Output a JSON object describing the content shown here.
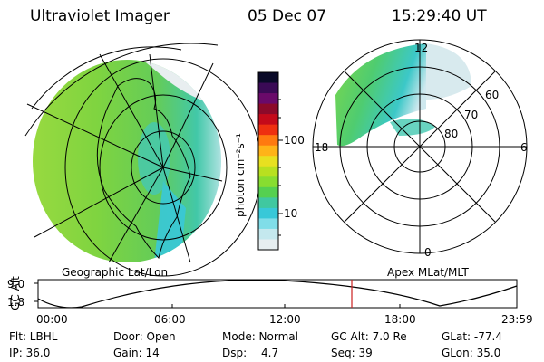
{
  "header": {
    "instrument": "Ultraviolet Imager",
    "date": "05 Dec 07",
    "time": "15:29:40 UT"
  },
  "geo_panel": {
    "caption": "Geographic Lat/Lon"
  },
  "apex_panel": {
    "caption": "Apex MLat/MLT",
    "mlt_labels": {
      "top": "12",
      "left": "18",
      "right": "6",
      "bottom": "0"
    },
    "lat_labels": [
      "60",
      "70",
      "80"
    ]
  },
  "colorbar": {
    "label": "photon cm⁻²s⁻¹",
    "ticks": [
      "100",
      "10"
    ],
    "colors": [
      "#0a0a28",
      "#3a0a55",
      "#6a0a6a",
      "#8c0a2a",
      "#c40a1a",
      "#ee3010",
      "#ff7a10",
      "#ffb318",
      "#e8e020",
      "#b8e020",
      "#88dd30",
      "#55d050",
      "#40c8a0",
      "#38c8d8",
      "#80dde8",
      "#c4e8ee",
      "#e6eef0"
    ]
  },
  "altitude_plot": {
    "ylabel": "GC Alt",
    "yticks": [
      "9.0",
      "1.8"
    ],
    "xticks": [
      "00:00",
      "06:00",
      "12:00",
      "18:00",
      "23:59"
    ],
    "marker_color": "#cc2020"
  },
  "info": {
    "filter": "Flt: LBHL",
    "door": "Door: Open",
    "mode": "Mode: Normal",
    "gc_alt": "GC Alt: 7.0 Re",
    "glat": "GLat: -77.4",
    "ip": "IP: 36.0",
    "gain": "Gain: 14",
    "dsp_label": "Dsp:",
    "dsp_value": "4.7",
    "seq": "Seq: 39",
    "glon": "GLon: 35.0"
  }
}
